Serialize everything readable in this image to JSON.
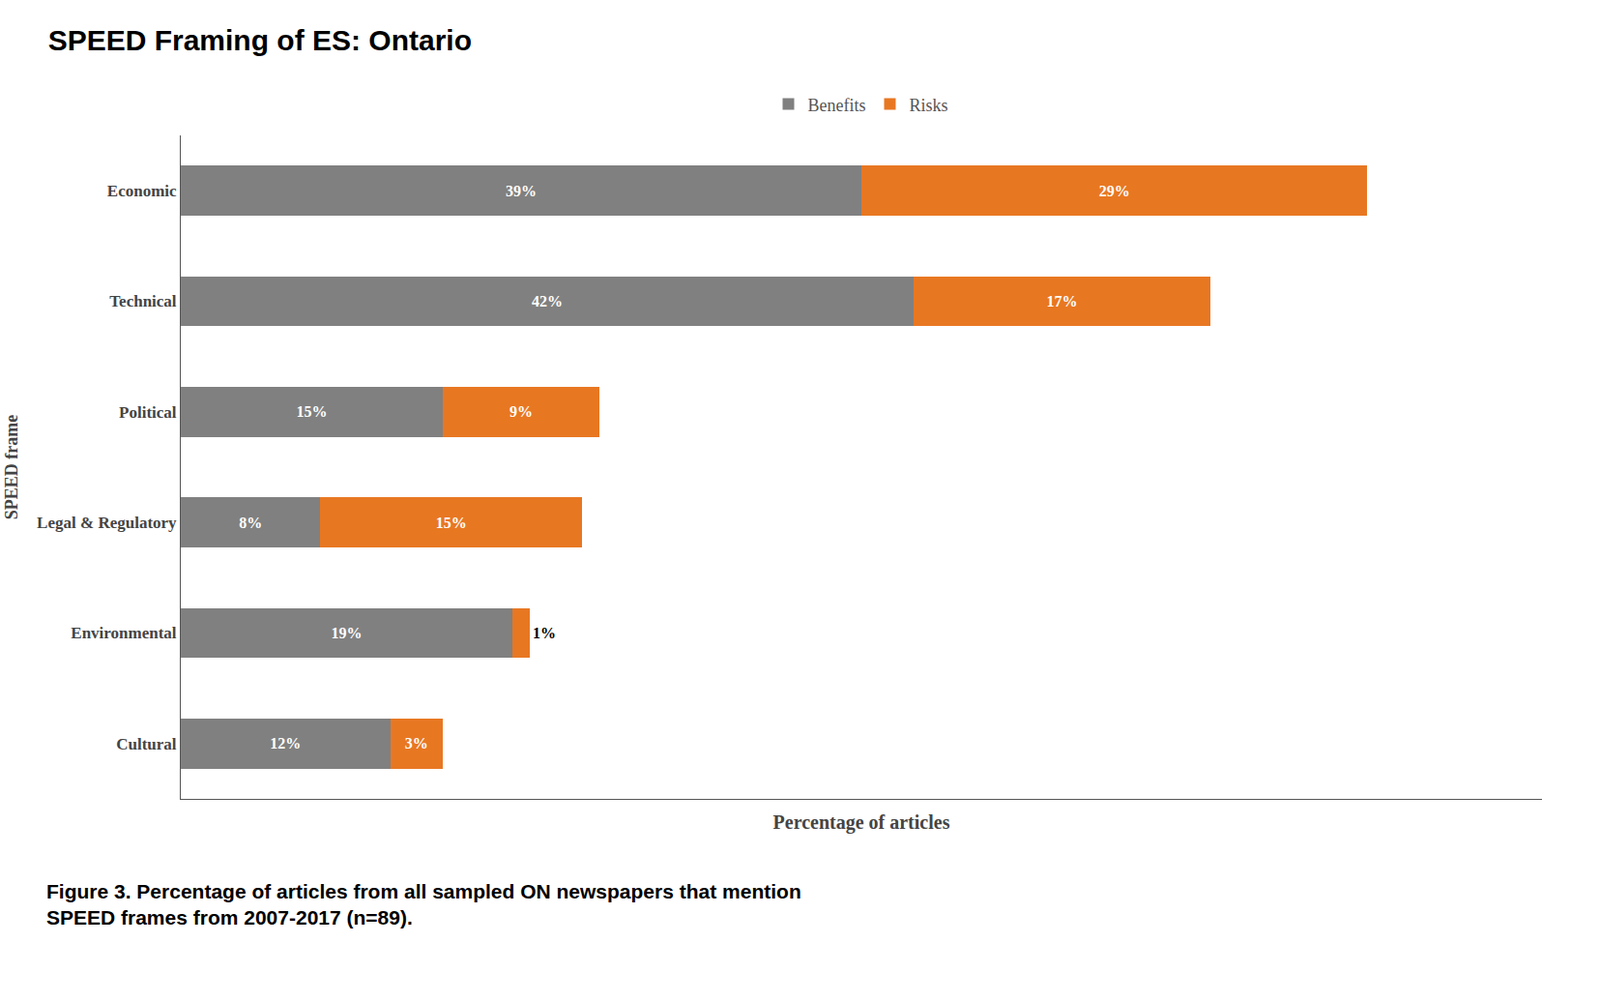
{
  "chart_data": {
    "type": "bar",
    "orientation": "horizontal",
    "stacked": true,
    "title": "SPEED Framing of ES: Ontario",
    "x_label": "Percentage of articles",
    "y_label": "SPEED frame",
    "categories": [
      "Economic",
      "Technical",
      "Political",
      "Legal & Regulatory",
      "Environmental",
      "Cultural"
    ],
    "series": [
      {
        "name": "Benefits",
        "color": "#808080",
        "values": [
          39,
          42,
          15,
          8,
          19,
          12
        ],
        "value_labels": [
          "39%",
          "42%",
          "15%",
          "8%",
          "19%",
          "12%"
        ]
      },
      {
        "name": "Risks",
        "color": "#E87722",
        "values": [
          29,
          17,
          9,
          15,
          1,
          3
        ],
        "value_labels": [
          "29%",
          "17%",
          "9%",
          "15%",
          "1%",
          "3%"
        ]
      }
    ],
    "xlim": [
      0,
      78
    ],
    "data_labels": true,
    "tick_labels": "y",
    "grid": false,
    "legend": "top",
    "annotations": [
      "Figure 3. Percentage of articles from all sampled ON newspapers that mention",
      "SPEED frames from 2007-2017 (n=89)."
    ]
  }
}
